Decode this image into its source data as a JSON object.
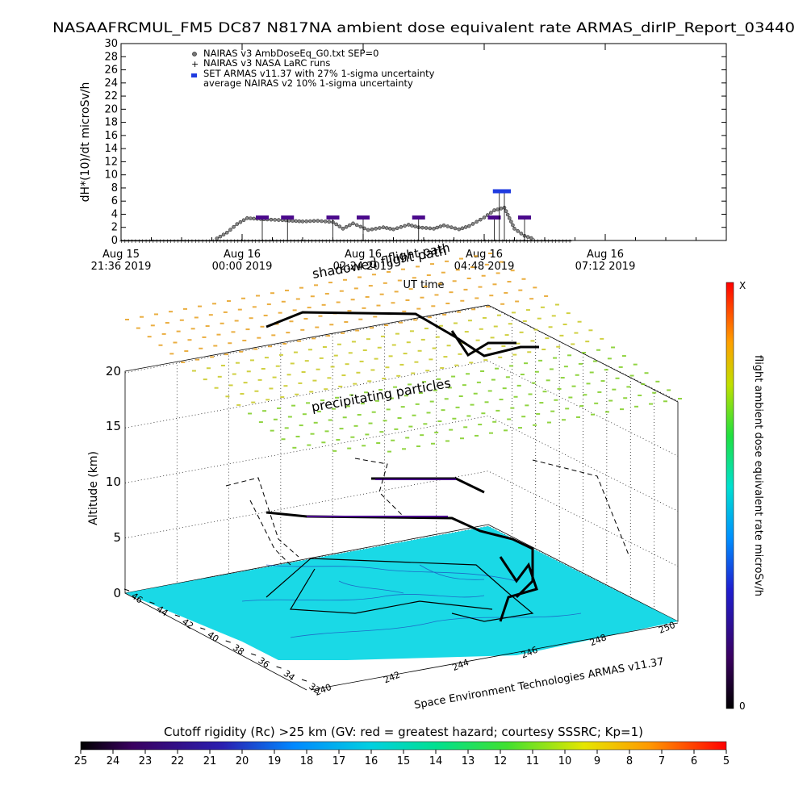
{
  "title": "NASAAFRCMUL_FM5 DC87 N817NA ambient dose equivalent rate ARMAS_dirIP_Report_03440",
  "chart_data": [
    {
      "type": "scatter",
      "ylabel": "dH*(10)/dt microSv/h",
      "xlabel": "UT time",
      "ylim": [
        0,
        30
      ],
      "yticks": [
        "0",
        "2",
        "4",
        "6",
        "8",
        "10",
        "12",
        "14",
        "16",
        "18",
        "20",
        "22",
        "24",
        "26",
        "28",
        "30"
      ],
      "xticks": [
        {
          "l1": "Aug 15",
          "l2": "21:36 2019"
        },
        {
          "l1": "Aug 16",
          "l2": "00:00 2019"
        },
        {
          "l1": "Aug 16",
          "l2": "02:24 2019"
        },
        {
          "l1": "Aug 16",
          "l2": "04:48 2019"
        },
        {
          "l1": "Aug 16",
          "l2": "07:12 2019"
        }
      ],
      "legend": [
        "NAIRAS v3 AmbDoseEq_G0.txt SEP=0",
        "NAIRAS v3 NASA LaRC runs",
        "SET ARMAS v11.37 with 27% 1-sigma uncertainty",
        "average NAIRAS v2 10% 1-sigma uncertainty"
      ],
      "legend_position": "top-left",
      "series": [
        {
          "name": "NAIRAS v3 AmbDoseEq_G0.txt SEP=0",
          "x_hours": [
            -0.5,
            -0.3,
            -0.1,
            0.1,
            0.3,
            0.5,
            0.8,
            1.0,
            1.2,
            1.5,
            1.8,
            2.0,
            2.2,
            2.5,
            2.8,
            3.0,
            3.3,
            3.5,
            3.8,
            4.0,
            4.3,
            4.5,
            4.8,
            5.0,
            5.2,
            5.4,
            5.6,
            5.8
          ],
          "y": [
            0.3,
            1.2,
            2.5,
            3.4,
            3.3,
            3.2,
            3.1,
            3.0,
            2.9,
            3.0,
            2.8,
            1.8,
            2.6,
            1.6,
            2.0,
            1.7,
            2.4,
            2.0,
            1.8,
            2.3,
            1.7,
            2.2,
            3.5,
            4.6,
            5.0,
            1.8,
            0.7,
            0.2
          ]
        },
        {
          "name": "SET ARMAS v11.37 with 27% 1-sigma uncertainty",
          "x_hours": [
            0.4,
            0.9,
            1.8,
            2.4,
            3.5,
            5.0,
            5.1,
            5.2,
            5.6
          ],
          "y": [
            3.5,
            3.5,
            3.5,
            3.5,
            3.5,
            3.5,
            7.5,
            7.5,
            3.5
          ]
        }
      ]
    },
    {
      "type": "surface",
      "zlabel": "Altitude (km)",
      "zticks": [
        "0",
        "5",
        "10",
        "15",
        "20"
      ],
      "lat_ticks": [
        "46",
        "44",
        "42",
        "40",
        "38",
        "36",
        "34",
        "32"
      ],
      "lon_ticks": [
        "240",
        "242",
        "244",
        "246",
        "248",
        "250"
      ],
      "colorbar_label": "flight ambient dose equivalent rate microSv/h",
      "colorbar_top": "X",
      "colorbar_bottom": "0",
      "annotations": [
        "shadowed flight path",
        "precipitating particles",
        "flight path"
      ],
      "credit": "Space Environment Technologies ARMAS v11.37"
    },
    {
      "type": "colorbar",
      "label": "Cutoff rigidity (Rc) >25 km (GV: red = greatest hazard; courtesy SSSRC; Kp=1)",
      "ticks": [
        "25",
        "24",
        "23",
        "22",
        "21",
        "20",
        "19",
        "18",
        "17",
        "16",
        "15",
        "14",
        "13",
        "12",
        "11",
        "10",
        "9",
        "8",
        "7",
        "6",
        "5"
      ]
    }
  ],
  "colors": {
    "surface": "#1ad9e6",
    "nairas_marker": "#555555",
    "armas_marker": "#4b0a8c",
    "armas_peak": "#1f3be0",
    "legend_square": "#1f3be0"
  }
}
